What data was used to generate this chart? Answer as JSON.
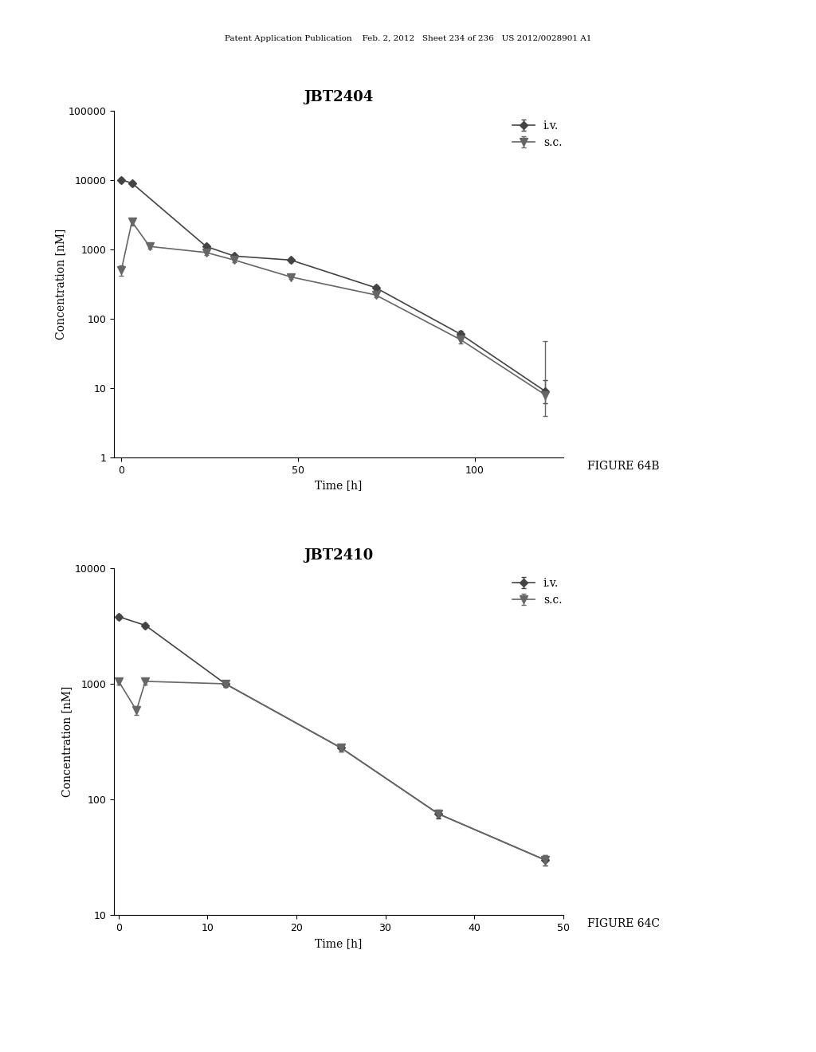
{
  "chart1": {
    "title": "JBT2404",
    "xlabel": "Time [h]",
    "ylabel": "Concentration [nM]",
    "xlim": [
      -2,
      125
    ],
    "ylim": [
      1,
      100000
    ],
    "yticks": [
      1,
      10,
      100,
      1000,
      10000,
      100000
    ],
    "xticks": [
      0,
      50,
      100
    ],
    "iv": {
      "x": [
        0,
        3,
        24,
        32,
        48,
        72,
        96,
        120
      ],
      "y": [
        10000,
        9000,
        1100,
        800,
        700,
        280,
        60,
        9
      ],
      "yerr_lo": [
        800,
        700,
        100,
        60,
        50,
        20,
        8,
        3
      ],
      "yerr_hi": [
        800,
        700,
        100,
        60,
        50,
        20,
        8,
        4
      ],
      "label": "i.v.",
      "color": "#444444",
      "marker": "D"
    },
    "sc": {
      "x": [
        0,
        3,
        8,
        24,
        32,
        48,
        72,
        96,
        120
      ],
      "y": [
        500,
        2500,
        1100,
        900,
        700,
        400,
        220,
        50,
        8
      ],
      "yerr_lo": [
        80,
        300,
        80,
        70,
        50,
        30,
        15,
        6,
        4
      ],
      "yerr_hi": [
        80,
        300,
        80,
        70,
        50,
        30,
        15,
        6,
        40
      ],
      "label": "s.c.",
      "color": "#666666",
      "marker": "v"
    },
    "figure_label": "FIGURE 64B"
  },
  "chart2": {
    "title": "JBT2410",
    "xlabel": "Time [h]",
    "ylabel": "Concentration [nM]",
    "xlim": [
      -0.5,
      50
    ],
    "ylim": [
      10,
      10000
    ],
    "yticks": [
      10,
      100,
      1000,
      10000
    ],
    "xticks": [
      0,
      10,
      20,
      30,
      40,
      50
    ],
    "iv": {
      "x": [
        0,
        3,
        12,
        25,
        36,
        48
      ],
      "y": [
        3800,
        3200,
        1000,
        280,
        75,
        30
      ],
      "yerr_lo": [
        200,
        150,
        60,
        20,
        6,
        3
      ],
      "yerr_hi": [
        200,
        150,
        60,
        20,
        6,
        3
      ],
      "label": "i.v.",
      "color": "#444444",
      "marker": "D"
    },
    "sc": {
      "x": [
        0,
        2,
        3,
        12,
        25,
        36,
        48
      ],
      "y": [
        1050,
        590,
        1050,
        1000,
        280,
        75,
        30
      ],
      "yerr_lo": [
        70,
        50,
        70,
        60,
        20,
        5,
        3
      ],
      "yerr_hi": [
        70,
        50,
        70,
        60,
        20,
        5,
        3
      ],
      "label": "s.c.",
      "color": "#666666",
      "marker": "v"
    },
    "figure_label": "FIGURE 64C"
  },
  "header_text": "Patent Application Publication    Feb. 2, 2012   Sheet 234 of 236   US 2012/0028901 A1",
  "bg_color": "#ffffff",
  "line_color": "#333333",
  "title_fontsize": 13,
  "axis_fontsize": 10,
  "tick_fontsize": 9,
  "legend_fontsize": 10
}
